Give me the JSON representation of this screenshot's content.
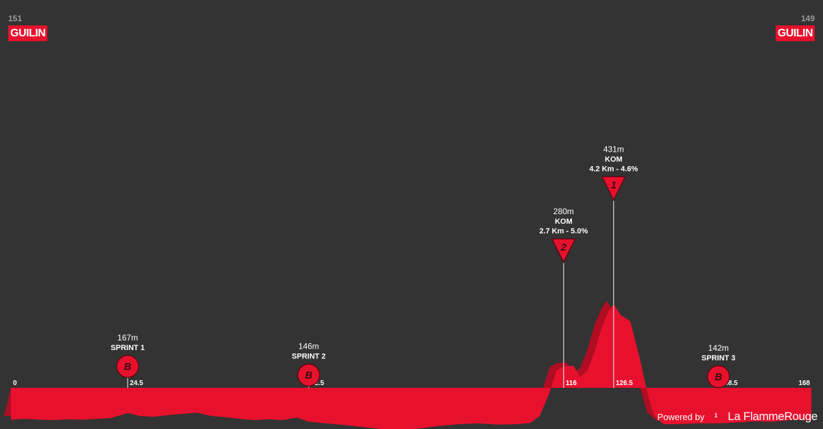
{
  "start": {
    "altitude": "151",
    "name": "GUILIN"
  },
  "finish": {
    "altitude": "149",
    "name": "GUILIN"
  },
  "footer": {
    "powered_by": "Powered by",
    "brand": "La FlammeRouge",
    "logo_icon": "flame-rouge-logo-icon"
  },
  "colors": {
    "background": "#333333",
    "profile": "#e8112d",
    "profile_shadow": "#b00d22",
    "marker_line": "#d9d9d9"
  },
  "chart_data": {
    "type": "area",
    "title": "",
    "xlabel": "",
    "ylabel": "",
    "xlim": [
      0,
      168
    ],
    "ylim": [
      0,
      600
    ],
    "x_ticks": [
      "0",
      "24.5",
      "62.5",
      "116",
      "126.5",
      "148.5",
      "168"
    ],
    "tick_values": [
      0,
      24.5,
      62.5,
      116,
      126.5,
      148.5,
      168
    ],
    "profile": {
      "x": [
        0,
        3,
        6,
        9,
        12,
        15,
        18,
        21,
        24.5,
        27,
        30,
        33,
        36,
        39,
        42,
        45,
        48,
        51,
        54,
        57,
        60,
        62.5,
        66,
        70,
        74,
        78,
        82,
        86,
        90,
        94,
        98,
        102,
        106,
        109,
        111,
        113,
        114.5,
        116,
        118,
        119.5,
        121,
        122.5,
        124,
        125.5,
        126.5,
        128,
        130,
        132,
        133.5,
        135,
        137,
        140,
        144,
        148.5,
        152,
        156,
        160,
        164,
        168
      ],
      "y": [
        151,
        153,
        151,
        150,
        152,
        151,
        153,
        155,
        167,
        160,
        158,
        162,
        165,
        168,
        160,
        157,
        153,
        150,
        152,
        150,
        156,
        146,
        142,
        138,
        133,
        128,
        125,
        130,
        136,
        140,
        142,
        139,
        140,
        143,
        160,
        215,
        270,
        280,
        282,
        255,
        270,
        315,
        375,
        415,
        431,
        405,
        390,
        300,
        220,
        160,
        140,
        140,
        142,
        142,
        144,
        147,
        146,
        151,
        149
      ]
    },
    "markers": [
      {
        "km": 24.5,
        "type": "sprint",
        "label": "SPRINT 1",
        "altitude": "167m",
        "symbol": "B",
        "climb": ""
      },
      {
        "km": 62.5,
        "type": "sprint",
        "label": "SPRINT 2",
        "altitude": "146m",
        "symbol": "B",
        "climb": ""
      },
      {
        "km": 116,
        "type": "kom",
        "label": "KOM",
        "altitude": "280m",
        "symbol": "2",
        "climb": "2.7 Km - 5.0%"
      },
      {
        "km": 126.5,
        "type": "kom",
        "label": "KOM",
        "altitude": "431m",
        "symbol": "1",
        "climb": "4.2 Km - 4.6%"
      },
      {
        "km": 148.5,
        "type": "sprint",
        "label": "SPRINT 3",
        "altitude": "142m",
        "symbol": "B",
        "climb": ""
      }
    ]
  }
}
